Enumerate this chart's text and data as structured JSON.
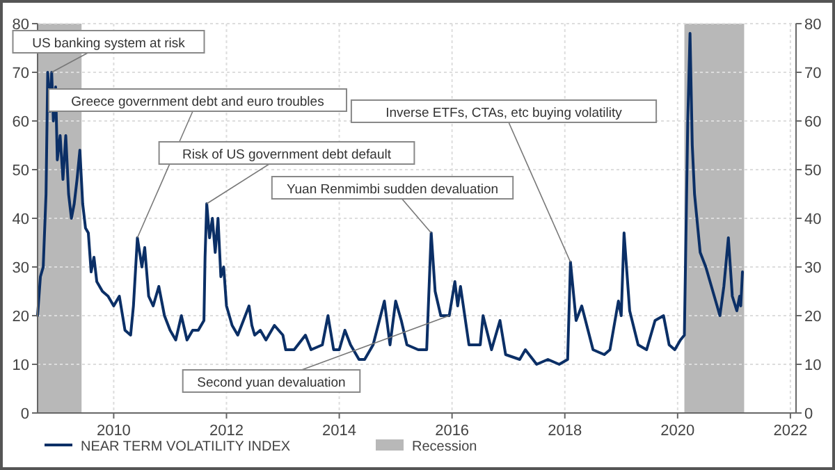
{
  "chart_data": {
    "type": "line",
    "x": [
      2008.65,
      2008.7,
      2008.75,
      2008.8,
      2008.83,
      2008.87,
      2008.9,
      2008.93,
      2008.97,
      2009.0,
      2009.05,
      2009.1,
      2009.15,
      2009.2,
      2009.25,
      2009.3,
      2009.35,
      2009.4,
      2009.45,
      2009.5,
      2009.55,
      2009.6,
      2009.65,
      2009.7,
      2009.8,
      2009.9,
      2010.0,
      2010.1,
      2010.2,
      2010.3,
      2010.35,
      2010.42,
      2010.5,
      2010.55,
      2010.62,
      2010.7,
      2010.8,
      2010.9,
      2011.0,
      2011.1,
      2011.2,
      2011.3,
      2011.4,
      2011.5,
      2011.6,
      2011.62,
      2011.65,
      2011.7,
      2011.75,
      2011.8,
      2011.85,
      2011.9,
      2011.95,
      2012.0,
      2012.1,
      2012.2,
      2012.3,
      2012.4,
      2012.45,
      2012.5,
      2012.6,
      2012.7,
      2012.85,
      2013.0,
      2013.05,
      2013.2,
      2013.4,
      2013.5,
      2013.7,
      2013.8,
      2013.9,
      2014.0,
      2014.1,
      2014.2,
      2014.35,
      2014.45,
      2014.6,
      2014.8,
      2014.9,
      2015.0,
      2015.1,
      2015.2,
      2015.4,
      2015.55,
      2015.63,
      2015.7,
      2015.8,
      2015.95,
      2016.05,
      2016.1,
      2016.15,
      2016.3,
      2016.5,
      2016.55,
      2016.7,
      2016.85,
      2016.95,
      2017.2,
      2017.3,
      2017.5,
      2017.7,
      2017.9,
      2018.05,
      2018.1,
      2018.2,
      2018.3,
      2018.5,
      2018.7,
      2018.8,
      2018.95,
      2019.0,
      2019.05,
      2019.15,
      2019.3,
      2019.45,
      2019.6,
      2019.75,
      2019.85,
      2019.95,
      2020.05,
      2020.12,
      2020.18,
      2020.22,
      2020.26,
      2020.3,
      2020.4,
      2020.5,
      2020.6,
      2020.7,
      2020.75,
      2020.82,
      2020.9,
      2020.97,
      2021.05,
      2021.1,
      2021.12,
      2021.15
    ],
    "series": [
      {
        "name": "NEAR TERM VOLATILITY INDEX",
        "color": "#0b2f66",
        "values": [
          20,
          28,
          30,
          45,
          70,
          62,
          70,
          60,
          67,
          52,
          57,
          48,
          57,
          45,
          40,
          43,
          48,
          54,
          43,
          38,
          37,
          29,
          32,
          27,
          25,
          24,
          22,
          24,
          17,
          16,
          22,
          36,
          30,
          34,
          24,
          22,
          26,
          20,
          17,
          15,
          20,
          15,
          17,
          17,
          19,
          32,
          43,
          36,
          40,
          33,
          40,
          28,
          30,
          22,
          18,
          16,
          19,
          22,
          18,
          16,
          17,
          15,
          18,
          16,
          13,
          13,
          16,
          13,
          14,
          20,
          13,
          13,
          17,
          14,
          11,
          11,
          14,
          23,
          14,
          23,
          19,
          14,
          13,
          13,
          37,
          25,
          20,
          20,
          27,
          22,
          26,
          14,
          14,
          20,
          13,
          19,
          12,
          11,
          13,
          10,
          11,
          10,
          11,
          31,
          19,
          22,
          13,
          12,
          13,
          23,
          20,
          37,
          21,
          14,
          13,
          19,
          20,
          14,
          13,
          15,
          16,
          60,
          78,
          55,
          45,
          33,
          30,
          26,
          22,
          20,
          26,
          36,
          24,
          21,
          24,
          22,
          29
        ]
      }
    ],
    "xlim": [
      2008.65,
      2022.1
    ],
    "xticks": [
      2010,
      2012,
      2014,
      2016,
      2018,
      2020,
      2022
    ],
    "ylim": [
      0,
      80
    ],
    "yticks": [
      0,
      10,
      20,
      30,
      40,
      50,
      60,
      70,
      80
    ],
    "y2lim": [
      0,
      80
    ],
    "y2ticks": [
      0,
      10,
      20,
      30,
      40,
      50,
      60,
      70,
      80
    ],
    "grid": true,
    "legend": "bottom left",
    "line_style": "solid",
    "marker": "none",
    "bands": [
      {
        "axis": "x",
        "from": 2008.65,
        "to": 2009.43,
        "label": "Recession",
        "color": "#b8b8b8"
      },
      {
        "axis": "x",
        "from": 2020.12,
        "to": 2021.18,
        "color": "#b8b8b8"
      }
    ],
    "annotations": [
      {
        "text": "US banking system at risk",
        "x": 2008.9,
        "y": 70
      },
      {
        "text": "Greece government debt and euro troubles",
        "x": 2010.42,
        "y": 36
      },
      {
        "text": "Risk of US government debt default",
        "x": 2011.65,
        "y": 43
      },
      {
        "text": "Yuan Renmimbi sudden devaluation",
        "x": 2015.63,
        "y": 37
      },
      {
        "text": "Inverse ETFs, CTAs, etc buying volatility",
        "x": 2018.1,
        "y": 31
      },
      {
        "text": "Second yuan devaluation",
        "x": 2015.95,
        "y": 20
      }
    ]
  }
}
